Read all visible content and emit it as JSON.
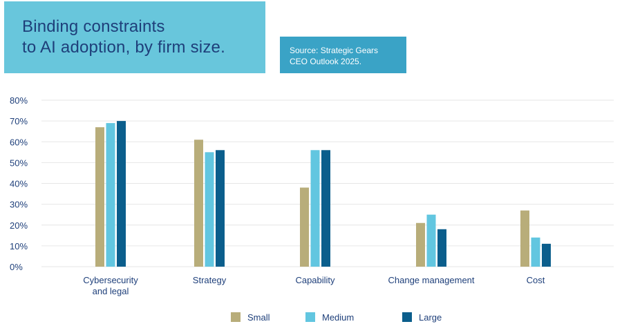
{
  "title": {
    "line1": "Binding constraints",
    "line2": "to AI adoption, by firm size."
  },
  "source": {
    "line1": "Source: Strategic Gears",
    "line2": "CEO Outlook 2025."
  },
  "colors": {
    "small": "#b8ad7a",
    "medium": "#62c6e0",
    "large": "#0b5e8c",
    "grid": "#e6e6e6",
    "text": "#1e3f7a"
  },
  "chart_data": {
    "type": "bar",
    "title": "Binding constraints to AI adoption, by firm size.",
    "xlabel": "",
    "ylabel": "",
    "ylim": [
      0,
      80
    ],
    "yticks": [
      "0%",
      "10%",
      "20%",
      "30%",
      "40%",
      "50%",
      "60%",
      "70%",
      "80%"
    ],
    "categories": [
      [
        "Cybersecurity",
        "and legal"
      ],
      [
        "Strategy"
      ],
      [
        "Capability"
      ],
      [
        "Change management"
      ],
      [
        "Cost"
      ]
    ],
    "series": [
      {
        "name": "Small",
        "color": "#b8ad7a",
        "values": [
          67,
          61,
          38,
          21,
          27
        ]
      },
      {
        "name": "Medium",
        "color": "#62c6e0",
        "values": [
          69,
          55,
          56,
          25,
          14
        ]
      },
      {
        "name": "Large",
        "color": "#0b5e8c",
        "values": [
          70,
          56,
          56,
          18,
          11
        ]
      }
    ],
    "legend": "bottom-center",
    "grid": true
  }
}
